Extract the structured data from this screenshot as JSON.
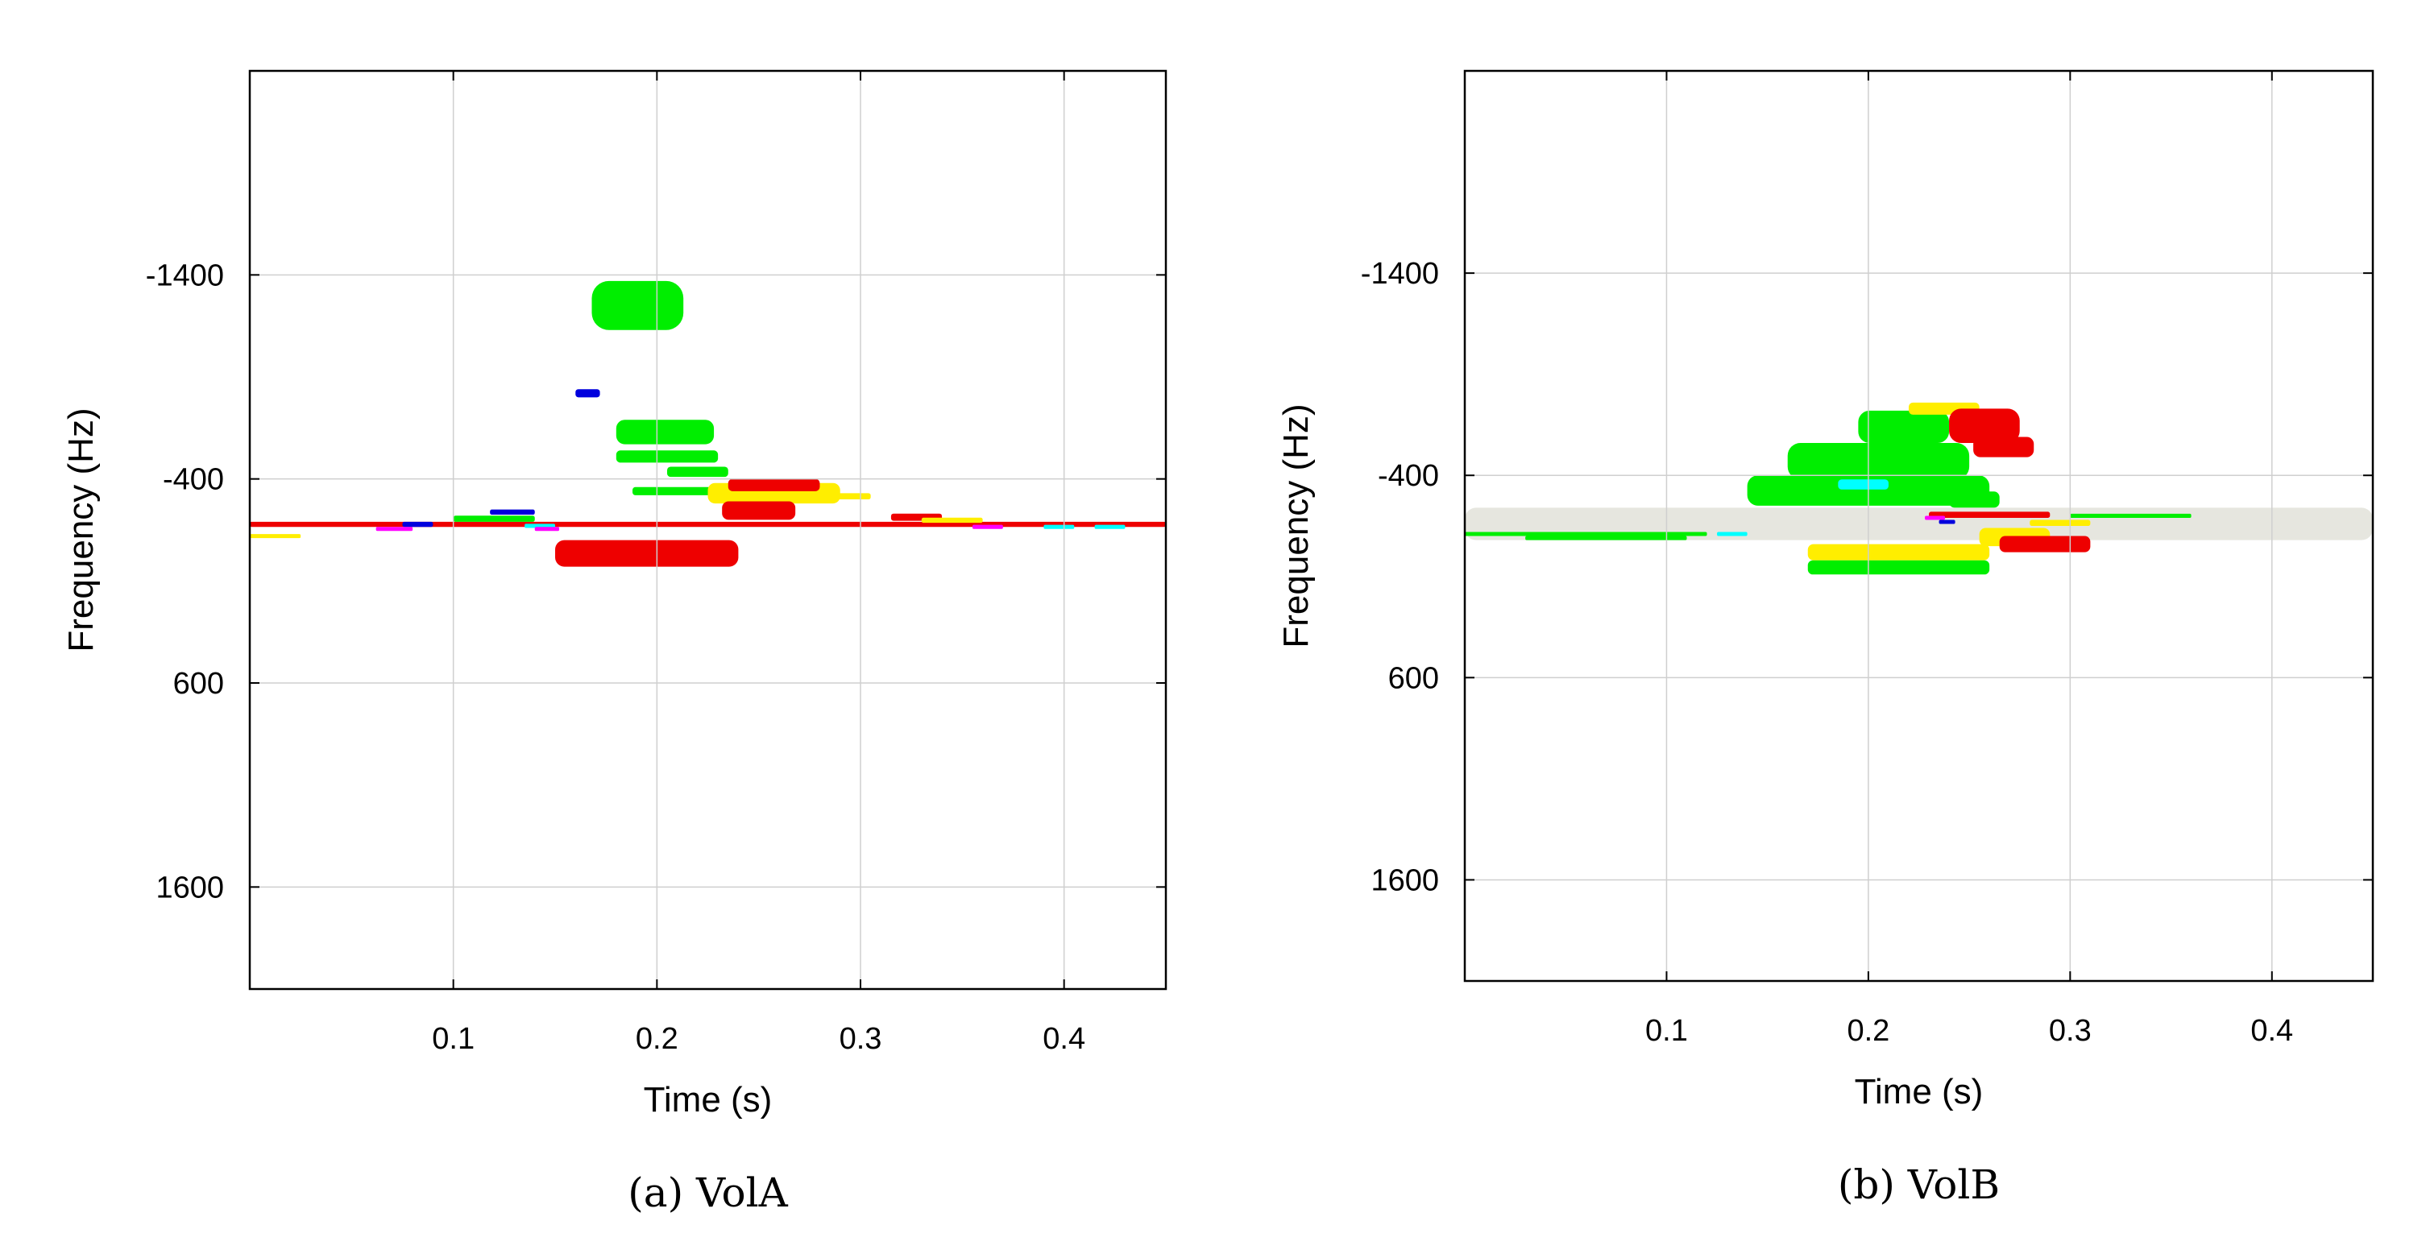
{
  "chart_data": [
    {
      "type": "heatmap",
      "caption": "(a)  VolA",
      "xlabel": "Time (s)",
      "ylabel": "Frequency (Hz)",
      "xlim": [
        0,
        0.45
      ],
      "ylim": [
        -2400,
        2100
      ],
      "xticks": [
        0.1,
        0.2,
        0.3,
        0.4
      ],
      "xtick_labels": [
        "0.1",
        "0.2",
        "0.3",
        "0.4"
      ],
      "yticks": [
        -1400,
        -400,
        600,
        1600
      ],
      "ytick_labels": [
        "-1400",
        "-400",
        "600",
        "1600"
      ],
      "grid": true,
      "blobs": [
        {
          "color": "#00ee00",
          "t": [
            0.168,
            0.213
          ],
          "f": [
            -1370,
            -1130
          ]
        },
        {
          "color": "#0000dd",
          "t": [
            0.16,
            0.172
          ],
          "f": [
            -840,
            -800
          ]
        },
        {
          "color": "#00ee00",
          "t": [
            0.18,
            0.228
          ],
          "f": [
            -690,
            -570
          ]
        },
        {
          "color": "#00ee00",
          "t": [
            0.18,
            0.23
          ],
          "f": [
            -540,
            -480
          ]
        },
        {
          "color": "#00ee00",
          "t": [
            0.205,
            0.235
          ],
          "f": [
            -460,
            -410
          ]
        },
        {
          "color": "#00ee00",
          "t": [
            0.188,
            0.245
          ],
          "f": [
            -360,
            -320
          ]
        },
        {
          "color": "#ffee00",
          "t": [
            0.225,
            0.29
          ],
          "f": [
            -380,
            -280
          ]
        },
        {
          "color": "#ee0000",
          "t": [
            0.235,
            0.28
          ],
          "f": [
            -400,
            -340
          ]
        },
        {
          "color": "#ee0000",
          "t": [
            0.232,
            0.268
          ],
          "f": [
            -290,
            -200
          ]
        },
        {
          "color": "#ffee00",
          "t": [
            0.26,
            0.305
          ],
          "f": [
            -330,
            -300
          ]
        },
        {
          "color": "#ee0000",
          "t": [
            0.15,
            0.24
          ],
          "f": [
            -100,
            30
          ]
        },
        {
          "color": "#ee0000",
          "t": [
            0.0,
            0.45
          ],
          "f": [
            -190,
            -165
          ]
        },
        {
          "color": "#ffee00",
          "t": [
            0.0,
            0.025
          ],
          "f": [
            -130,
            -110
          ]
        },
        {
          "color": "#0000dd",
          "t": [
            0.075,
            0.09
          ],
          "f": [
            -190,
            -165
          ]
        },
        {
          "color": "#ff00ff",
          "t": [
            0.062,
            0.08
          ],
          "f": [
            -165,
            -145
          ]
        },
        {
          "color": "#00ee00",
          "t": [
            0.1,
            0.14
          ],
          "f": [
            -220,
            -190
          ]
        },
        {
          "color": "#0000dd",
          "t": [
            0.118,
            0.14
          ],
          "f": [
            -250,
            -225
          ]
        },
        {
          "color": "#00ffff",
          "t": [
            0.135,
            0.15
          ],
          "f": [
            -180,
            -160
          ]
        },
        {
          "color": "#ff00ff",
          "t": [
            0.14,
            0.152
          ],
          "f": [
            -165,
            -145
          ]
        },
        {
          "color": "#ee0000",
          "t": [
            0.315,
            0.34
          ],
          "f": [
            -230,
            -195
          ]
        },
        {
          "color": "#ffee00",
          "t": [
            0.33,
            0.36
          ],
          "f": [
            -210,
            -185
          ]
        },
        {
          "color": "#ff00ff",
          "t": [
            0.355,
            0.37
          ],
          "f": [
            -175,
            -155
          ]
        },
        {
          "color": "#00ffff",
          "t": [
            0.39,
            0.405
          ],
          "f": [
            -175,
            -155
          ]
        },
        {
          "color": "#00ffff",
          "t": [
            0.415,
            0.43
          ],
          "f": [
            -175,
            -155
          ]
        }
      ]
    },
    {
      "type": "heatmap",
      "caption": "(b)  VolB",
      "xlabel": "Time (s)",
      "ylabel": "Frequency (Hz)",
      "xlim": [
        0,
        0.45
      ],
      "ylim": [
        -2400,
        2100
      ],
      "xticks": [
        0.1,
        0.2,
        0.3,
        0.4
      ],
      "xtick_labels": [
        "0.1",
        "0.2",
        "0.3",
        "0.4"
      ],
      "yticks": [
        -1400,
        -400,
        600,
        1600
      ],
      "ytick_labels": [
        "-1400",
        "-400",
        "600",
        "1600"
      ],
      "grid": true,
      "blobs": [
        {
          "color": "#00ee00",
          "t": [
            0.195,
            0.24
          ],
          "f": [
            -720,
            -560
          ]
        },
        {
          "color": "#ffee00",
          "t": [
            0.22,
            0.255
          ],
          "f": [
            -760,
            -700
          ]
        },
        {
          "color": "#ee0000",
          "t": [
            0.24,
            0.275
          ],
          "f": [
            -730,
            -560
          ]
        },
        {
          "color": "#ee0000",
          "t": [
            0.252,
            0.282
          ],
          "f": [
            -590,
            -490
          ]
        },
        {
          "color": "#00ee00",
          "t": [
            0.16,
            0.25
          ],
          "f": [
            -560,
            -380
          ]
        },
        {
          "color": "#00ee00",
          "t": [
            0.14,
            0.26
          ],
          "f": [
            -400,
            -250
          ]
        },
        {
          "color": "#00ffff",
          "t": [
            0.185,
            0.21
          ],
          "f": [
            -380,
            -330
          ]
        },
        {
          "color": "#00ee00",
          "t": [
            0.24,
            0.265
          ],
          "f": [
            -320,
            -240
          ]
        },
        {
          "color": "#e6e6df",
          "t": [
            0.0,
            0.45
          ],
          "f": [
            -240,
            -80
          ]
        },
        {
          "color": "#00ee00",
          "t": [
            0.0,
            0.12
          ],
          "f": [
            -120,
            -100
          ]
        },
        {
          "color": "#00ee00",
          "t": [
            0.03,
            0.11
          ],
          "f": [
            -100,
            -80
          ]
        },
        {
          "color": "#00ee00",
          "t": [
            0.3,
            0.36
          ],
          "f": [
            -210,
            -190
          ]
        },
        {
          "color": "#00ffff",
          "t": [
            0.125,
            0.14
          ],
          "f": [
            -120,
            -100
          ]
        },
        {
          "color": "#ffee00",
          "t": [
            0.17,
            0.26
          ],
          "f": [
            -60,
            20
          ]
        },
        {
          "color": "#00ee00",
          "t": [
            0.17,
            0.26
          ],
          "f": [
            20,
            90
          ]
        },
        {
          "color": "#ffee00",
          "t": [
            0.255,
            0.29
          ],
          "f": [
            -140,
            -50
          ]
        },
        {
          "color": "#ee0000",
          "t": [
            0.265,
            0.31
          ],
          "f": [
            -100,
            -20
          ]
        },
        {
          "color": "#ee0000",
          "t": [
            0.23,
            0.29
          ],
          "f": [
            -220,
            -190
          ]
        },
        {
          "color": "#ff00ff",
          "t": [
            0.228,
            0.238
          ],
          "f": [
            -200,
            -180
          ]
        },
        {
          "color": "#0000dd",
          "t": [
            0.235,
            0.243
          ],
          "f": [
            -180,
            -160
          ]
        },
        {
          "color": "#ffee00",
          "t": [
            0.28,
            0.31
          ],
          "f": [
            -180,
            -150
          ]
        }
      ]
    }
  ]
}
